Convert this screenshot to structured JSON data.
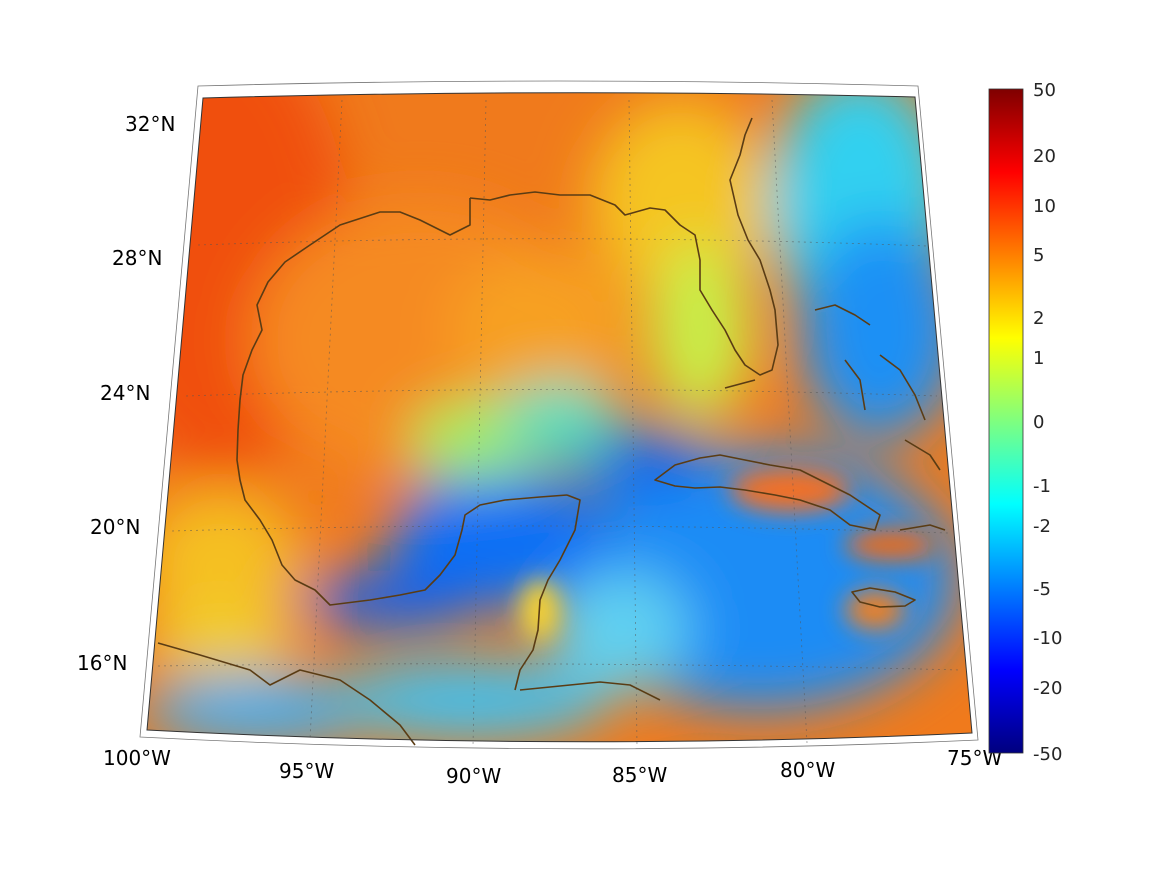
{
  "map": {
    "region": "Gulf of Mexico and Caribbean",
    "projection": "lambert conic (curved graticule)",
    "lon_range": [
      -100,
      -75
    ],
    "lat_range": [
      14,
      32
    ],
    "grid": true,
    "coastline_color": "#5a3c14"
  },
  "lon_labels": [
    "100°W",
    "95°W",
    "90°W",
    "85°W",
    "80°W",
    "75°W"
  ],
  "lat_labels": [
    "16°N",
    "20°N",
    "24°N",
    "28°N",
    "32°N"
  ],
  "colorbar": {
    "colormap": "jet",
    "placement": "right",
    "ticks": [
      "50",
      "20",
      "10",
      "5",
      "2",
      "1",
      "0",
      "-1",
      "-2",
      "-5",
      "-10",
      "-20",
      "-50"
    ],
    "colors": [
      "#7f0000",
      "#ff0000",
      "#ff7f00",
      "#ffff00",
      "#7fff7f",
      "#00ffff",
      "#007fff",
      "#0000ff",
      "#00007f"
    ]
  },
  "chart_data": {
    "type": "heatmap",
    "title": "",
    "xlabel": "",
    "ylabel": "",
    "x_ticks": [
      "100°W",
      "95°W",
      "90°W",
      "85°W",
      "80°W",
      "75°W"
    ],
    "y_ticks": [
      "16°N",
      "20°N",
      "24°N",
      "28°N",
      "32°N"
    ],
    "color_scale_ticks": [
      50,
      20,
      10,
      5,
      2,
      1,
      0,
      -1,
      -2,
      -5,
      -10,
      -20,
      -50
    ],
    "regions": [
      {
        "area": "Texas / northwestern Gulf",
        "approx_value": 8
      },
      {
        "area": "Central Gulf of Mexico",
        "approx_value": 4
      },
      {
        "area": "Florida peninsula",
        "approx_value": 1
      },
      {
        "area": "Yucatan Peninsula",
        "approx_value": -4
      },
      {
        "area": "Western Caribbean Sea",
        "approx_value": -3
      },
      {
        "area": "Bahamas / Atlantic",
        "approx_value": -4
      },
      {
        "area": "Cuba interior",
        "approx_value": 4
      },
      {
        "area": "Jamaica",
        "approx_value": 4
      },
      {
        "area": "Bay of Campeche coast",
        "approx_value": -5
      }
    ]
  }
}
